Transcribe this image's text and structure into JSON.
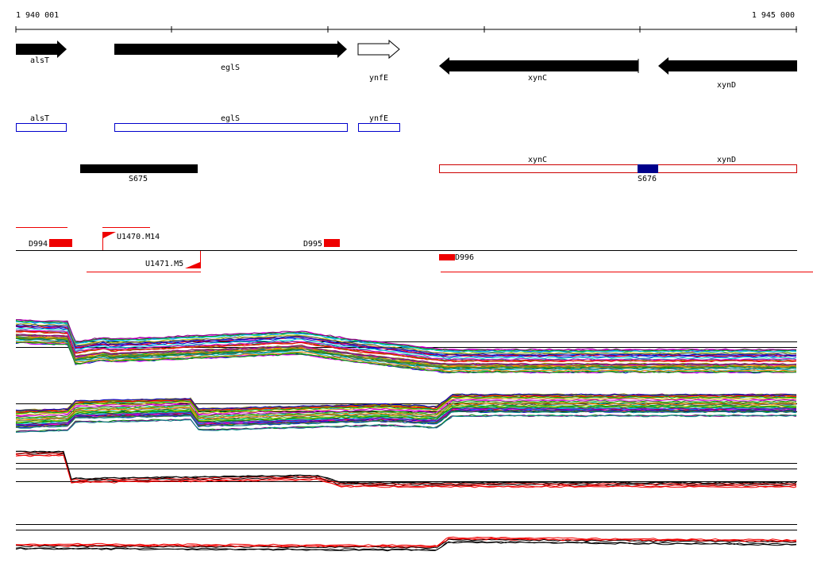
{
  "scale": {
    "start": "1 940 001",
    "end": "1 945 000"
  },
  "genes": [
    {
      "label": "alsT"
    },
    {
      "label": "eglS"
    },
    {
      "label": "ynfE"
    },
    {
      "label": "xynC"
    },
    {
      "label": "xynD"
    }
  ],
  "operons": [
    {
      "label": "alsT"
    },
    {
      "label": "eglS"
    },
    {
      "label": "ynfE"
    },
    {
      "label": "xynC"
    },
    {
      "label": "xynD"
    }
  ],
  "segments": [
    {
      "label": "S675"
    },
    {
      "label": "S676"
    }
  ],
  "features": [
    {
      "label": "D994"
    },
    {
      "label": "U1470.M14"
    },
    {
      "label": "D995"
    },
    {
      "label": "U1471.M5"
    },
    {
      "label": "D996"
    }
  ]
}
